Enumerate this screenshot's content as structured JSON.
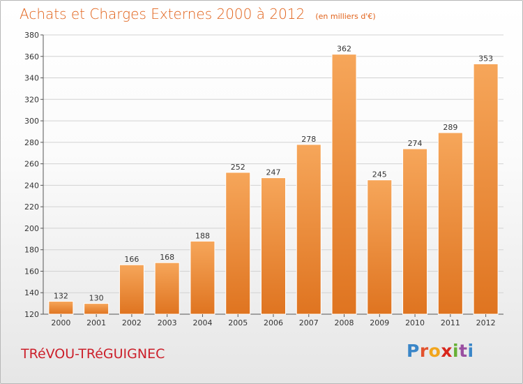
{
  "title": "Achats et Charges Externes 2000 à 2012",
  "unit": "(en milliers d'€)",
  "commune": "TRéVOU-TRéGUIGNEC",
  "brand": {
    "letters": [
      "P",
      "r",
      "o",
      "x",
      "i",
      "t",
      "i"
    ],
    "colors": [
      "#3a86c8",
      "#e2522e",
      "#f2a51c",
      "#d8261c",
      "#66b035",
      "#9a4fa1",
      "#3a86c8"
    ]
  },
  "colors": {
    "bar_top": "#f6a65a",
    "bar_bottom": "#df7420",
    "title": "#e1621a",
    "commune": "#cc1f2a"
  },
  "chart_data": {
    "type": "bar",
    "categories": [
      "2000",
      "2001",
      "2002",
      "2003",
      "2004",
      "2005",
      "2006",
      "2007",
      "2008",
      "2009",
      "2010",
      "2011",
      "2012"
    ],
    "values": [
      132,
      130,
      166,
      168,
      188,
      252,
      247,
      278,
      362,
      245,
      274,
      289,
      353
    ],
    "ylim": [
      120,
      380
    ],
    "yticks": [
      120,
      140,
      160,
      180,
      200,
      220,
      240,
      260,
      280,
      300,
      320,
      340,
      360,
      380
    ],
    "grid": true,
    "data_labels": true
  }
}
